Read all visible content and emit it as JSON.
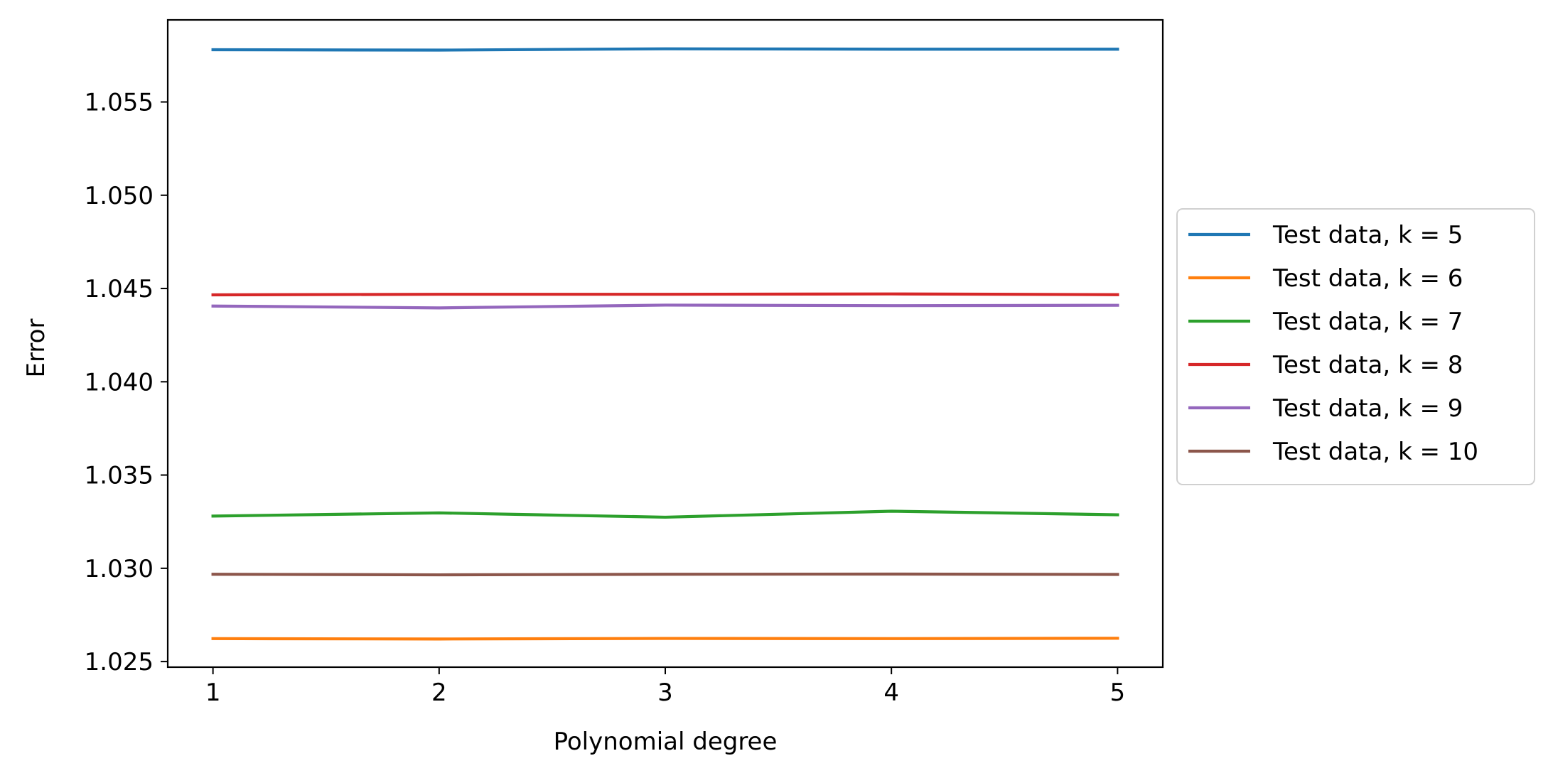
{
  "chart_data": {
    "type": "line",
    "title": "",
    "xlabel": "Polynomial degree",
    "ylabel": "Error",
    "x": [
      1,
      2,
      3,
      4,
      5
    ],
    "xticks": [
      "1",
      "2",
      "3",
      "4",
      "5"
    ],
    "yticks": [
      "1.025",
      "1.030",
      "1.035",
      "1.040",
      "1.045",
      "1.050",
      "1.055"
    ],
    "xlim": [
      0.8,
      5.2
    ],
    "ylim": [
      1.0247,
      1.0594
    ],
    "grid": false,
    "legend_position": "right-center, outside plot",
    "series": [
      {
        "name": "Test data, k = 5",
        "color": "#1f77b4",
        "values": [
          1.0578,
          1.05778,
          1.05785,
          1.05783,
          1.05783
        ]
      },
      {
        "name": "Test data, k = 6",
        "color": "#ff7f0e",
        "values": [
          1.02623,
          1.02621,
          1.02624,
          1.02623,
          1.02625
        ]
      },
      {
        "name": "Test data, k = 7",
        "color": "#2ca02c",
        "values": [
          1.0328,
          1.03297,
          1.03274,
          1.03306,
          1.03287
        ]
      },
      {
        "name": "Test data, k = 8",
        "color": "#d62728",
        "values": [
          1.04466,
          1.04469,
          1.04469,
          1.04471,
          1.04467
        ]
      },
      {
        "name": "Test data, k = 9",
        "color": "#9467bd",
        "values": [
          1.04406,
          1.04396,
          1.04411,
          1.04408,
          1.0441
        ]
      },
      {
        "name": "Test data, k = 10",
        "color": "#8c564b",
        "values": [
          1.02968,
          1.02965,
          1.02968,
          1.02969,
          1.02967
        ]
      }
    ]
  }
}
